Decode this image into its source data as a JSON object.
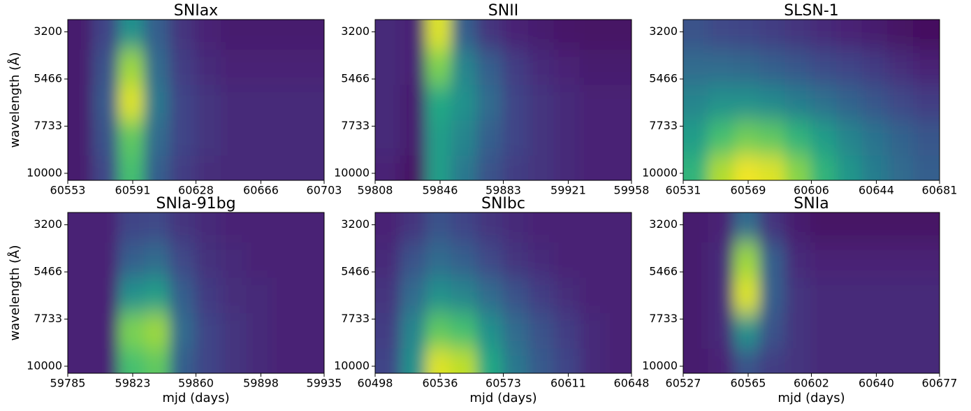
{
  "chart_data": [
    {
      "type": "heatmap",
      "title": "SNIax",
      "colormap": "viridis",
      "ylabel": "wavelength (Å)",
      "xlim": [
        60553,
        60703
      ],
      "xticks": [
        60553,
        60591,
        60628,
        60666,
        60703
      ],
      "ylim": [
        10338,
        2609
      ],
      "yticks": [
        3200,
        5466,
        7733,
        10000
      ],
      "x": [
        60560,
        60575,
        60590,
        60605,
        60620,
        60635,
        60650,
        60665,
        60680,
        60695
      ],
      "y": [
        3200,
        4900,
        6600,
        8300,
        10000
      ],
      "z": [
        [
          0.08,
          0.2,
          0.5,
          0.3,
          0.15,
          0.1,
          0.08,
          0.08,
          0.08,
          0.08
        ],
        [
          0.08,
          0.25,
          0.85,
          0.35,
          0.18,
          0.12,
          0.1,
          0.1,
          0.1,
          0.1
        ],
        [
          0.08,
          0.28,
          0.95,
          0.4,
          0.2,
          0.15,
          0.12,
          0.12,
          0.12,
          0.12
        ],
        [
          0.08,
          0.25,
          0.75,
          0.35,
          0.2,
          0.15,
          0.12,
          0.12,
          0.12,
          0.12
        ],
        [
          0.08,
          0.22,
          0.7,
          0.3,
          0.18,
          0.13,
          0.12,
          0.12,
          0.12,
          0.12
        ]
      ]
    },
    {
      "type": "heatmap",
      "title": "SNII",
      "colormap": "viridis",
      "xlim": [
        59808,
        59958
      ],
      "xticks": [
        59808,
        59846,
        59883,
        59921,
        59958
      ],
      "ylim": [
        10338,
        2609
      ],
      "yticks": [
        3200,
        5466,
        7733,
        10000
      ],
      "x": [
        59815,
        59830,
        59845,
        59860,
        59875,
        59890,
        59905,
        59920,
        59935,
        59950
      ],
      "y": [
        3200,
        4900,
        6600,
        8300,
        10000
      ],
      "z": [
        [
          0.12,
          0.1,
          0.95,
          0.3,
          0.15,
          0.1,
          0.08,
          0.06,
          0.05,
          0.05
        ],
        [
          0.12,
          0.1,
          0.8,
          0.45,
          0.3,
          0.18,
          0.12,
          0.1,
          0.08,
          0.08
        ],
        [
          0.12,
          0.08,
          0.6,
          0.5,
          0.35,
          0.2,
          0.15,
          0.12,
          0.1,
          0.1
        ],
        [
          0.12,
          0.08,
          0.55,
          0.45,
          0.3,
          0.2,
          0.15,
          0.12,
          0.1,
          0.1
        ],
        [
          0.1,
          0.05,
          0.55,
          0.4,
          0.25,
          0.18,
          0.15,
          0.12,
          0.1,
          0.1
        ]
      ]
    },
    {
      "type": "heatmap",
      "title": "SLSN-1",
      "colormap": "viridis",
      "xlim": [
        60531,
        60681
      ],
      "xticks": [
        60531,
        60569,
        60606,
        60644,
        60681
      ],
      "ylim": [
        10338,
        2609
      ],
      "yticks": [
        3200,
        5466,
        7733,
        10000
      ],
      "x": [
        60538,
        60553,
        60568,
        60583,
        60598,
        60613,
        60628,
        60643,
        60658,
        60673
      ],
      "y": [
        3200,
        4900,
        6600,
        8300,
        10000
      ],
      "z": [
        [
          0.25,
          0.22,
          0.2,
          0.18,
          0.15,
          0.12,
          0.1,
          0.08,
          0.05,
          0.03
        ],
        [
          0.35,
          0.35,
          0.33,
          0.3,
          0.27,
          0.23,
          0.2,
          0.17,
          0.13,
          0.1
        ],
        [
          0.45,
          0.5,
          0.5,
          0.47,
          0.42,
          0.37,
          0.32,
          0.27,
          0.22,
          0.18
        ],
        [
          0.55,
          0.7,
          0.78,
          0.75,
          0.65,
          0.55,
          0.45,
          0.38,
          0.32,
          0.27
        ],
        [
          0.65,
          0.88,
          0.98,
          0.95,
          0.82,
          0.65,
          0.52,
          0.42,
          0.35,
          0.3
        ]
      ]
    },
    {
      "type": "heatmap",
      "title": "SNIa-91bg",
      "colormap": "viridis",
      "ylabel": "wavelength (Å)",
      "xlabel": "mjd (days)",
      "xlim": [
        59785,
        59935
      ],
      "xticks": [
        59785,
        59823,
        59860,
        59898,
        59935
      ],
      "ylim": [
        10338,
        2609
      ],
      "yticks": [
        3200,
        5466,
        7733,
        10000
      ],
      "x": [
        59792,
        59807,
        59822,
        59837,
        59852,
        59867,
        59882,
        59897,
        59912,
        59927
      ],
      "y": [
        3200,
        4900,
        6600,
        8300,
        10000
      ],
      "z": [
        [
          0.1,
          0.1,
          0.2,
          0.22,
          0.15,
          0.12,
          0.1,
          0.1,
          0.1,
          0.1
        ],
        [
          0.1,
          0.1,
          0.3,
          0.35,
          0.22,
          0.14,
          0.12,
          0.1,
          0.1,
          0.1
        ],
        [
          0.1,
          0.1,
          0.5,
          0.55,
          0.3,
          0.17,
          0.13,
          0.12,
          0.1,
          0.1
        ],
        [
          0.1,
          0.1,
          0.8,
          0.85,
          0.35,
          0.2,
          0.15,
          0.12,
          0.1,
          0.1
        ],
        [
          0.1,
          0.1,
          0.7,
          0.75,
          0.3,
          0.2,
          0.15,
          0.12,
          0.1,
          0.1
        ]
      ]
    },
    {
      "type": "heatmap",
      "title": "SNIbc",
      "colormap": "viridis",
      "xlabel": "mjd (days)",
      "xlim": [
        60498,
        60648
      ],
      "xticks": [
        60498,
        60536,
        60573,
        60611,
        60648
      ],
      "ylim": [
        10338,
        2609
      ],
      "yticks": [
        3200,
        5466,
        7733,
        10000
      ],
      "x": [
        60505,
        60520,
        60535,
        60550,
        60565,
        60580,
        60595,
        60610,
        60625,
        60640
      ],
      "y": [
        3200,
        4900,
        6600,
        8300,
        10000
      ],
      "z": [
        [
          0.1,
          0.15,
          0.25,
          0.2,
          0.15,
          0.12,
          0.1,
          0.1,
          0.1,
          0.1
        ],
        [
          0.12,
          0.25,
          0.35,
          0.3,
          0.22,
          0.15,
          0.12,
          0.1,
          0.1,
          0.1
        ],
        [
          0.15,
          0.35,
          0.5,
          0.45,
          0.35,
          0.25,
          0.18,
          0.13,
          0.1,
          0.1
        ],
        [
          0.18,
          0.45,
          0.75,
          0.7,
          0.5,
          0.35,
          0.25,
          0.18,
          0.12,
          0.1
        ],
        [
          0.2,
          0.5,
          0.95,
          0.9,
          0.6,
          0.4,
          0.28,
          0.2,
          0.12,
          0.1
        ]
      ]
    },
    {
      "type": "heatmap",
      "title": "SNIa",
      "colormap": "viridis",
      "xlabel": "mjd (days)",
      "xlim": [
        60527,
        60677
      ],
      "xticks": [
        60527,
        60565,
        60602,
        60640,
        60677
      ],
      "ylim": [
        10338,
        2609
      ],
      "yticks": [
        3200,
        5466,
        7733,
        10000
      ],
      "x": [
        60534,
        60549,
        60564,
        60579,
        60594,
        60609,
        60624,
        60639,
        60654,
        60669
      ],
      "y": [
        3200,
        4900,
        6600,
        8300,
        10000
      ],
      "z": [
        [
          0.08,
          0.1,
          0.35,
          0.15,
          0.08,
          0.05,
          0.05,
          0.05,
          0.05,
          0.05
        ],
        [
          0.08,
          0.12,
          0.85,
          0.3,
          0.12,
          0.1,
          0.1,
          0.1,
          0.1,
          0.1
        ],
        [
          0.08,
          0.12,
          0.95,
          0.3,
          0.15,
          0.12,
          0.12,
          0.12,
          0.12,
          0.12
        ],
        [
          0.08,
          0.12,
          0.5,
          0.25,
          0.15,
          0.12,
          0.12,
          0.12,
          0.12,
          0.12
        ],
        [
          0.08,
          0.1,
          0.25,
          0.18,
          0.15,
          0.12,
          0.12,
          0.12,
          0.12,
          0.12
        ]
      ]
    }
  ]
}
